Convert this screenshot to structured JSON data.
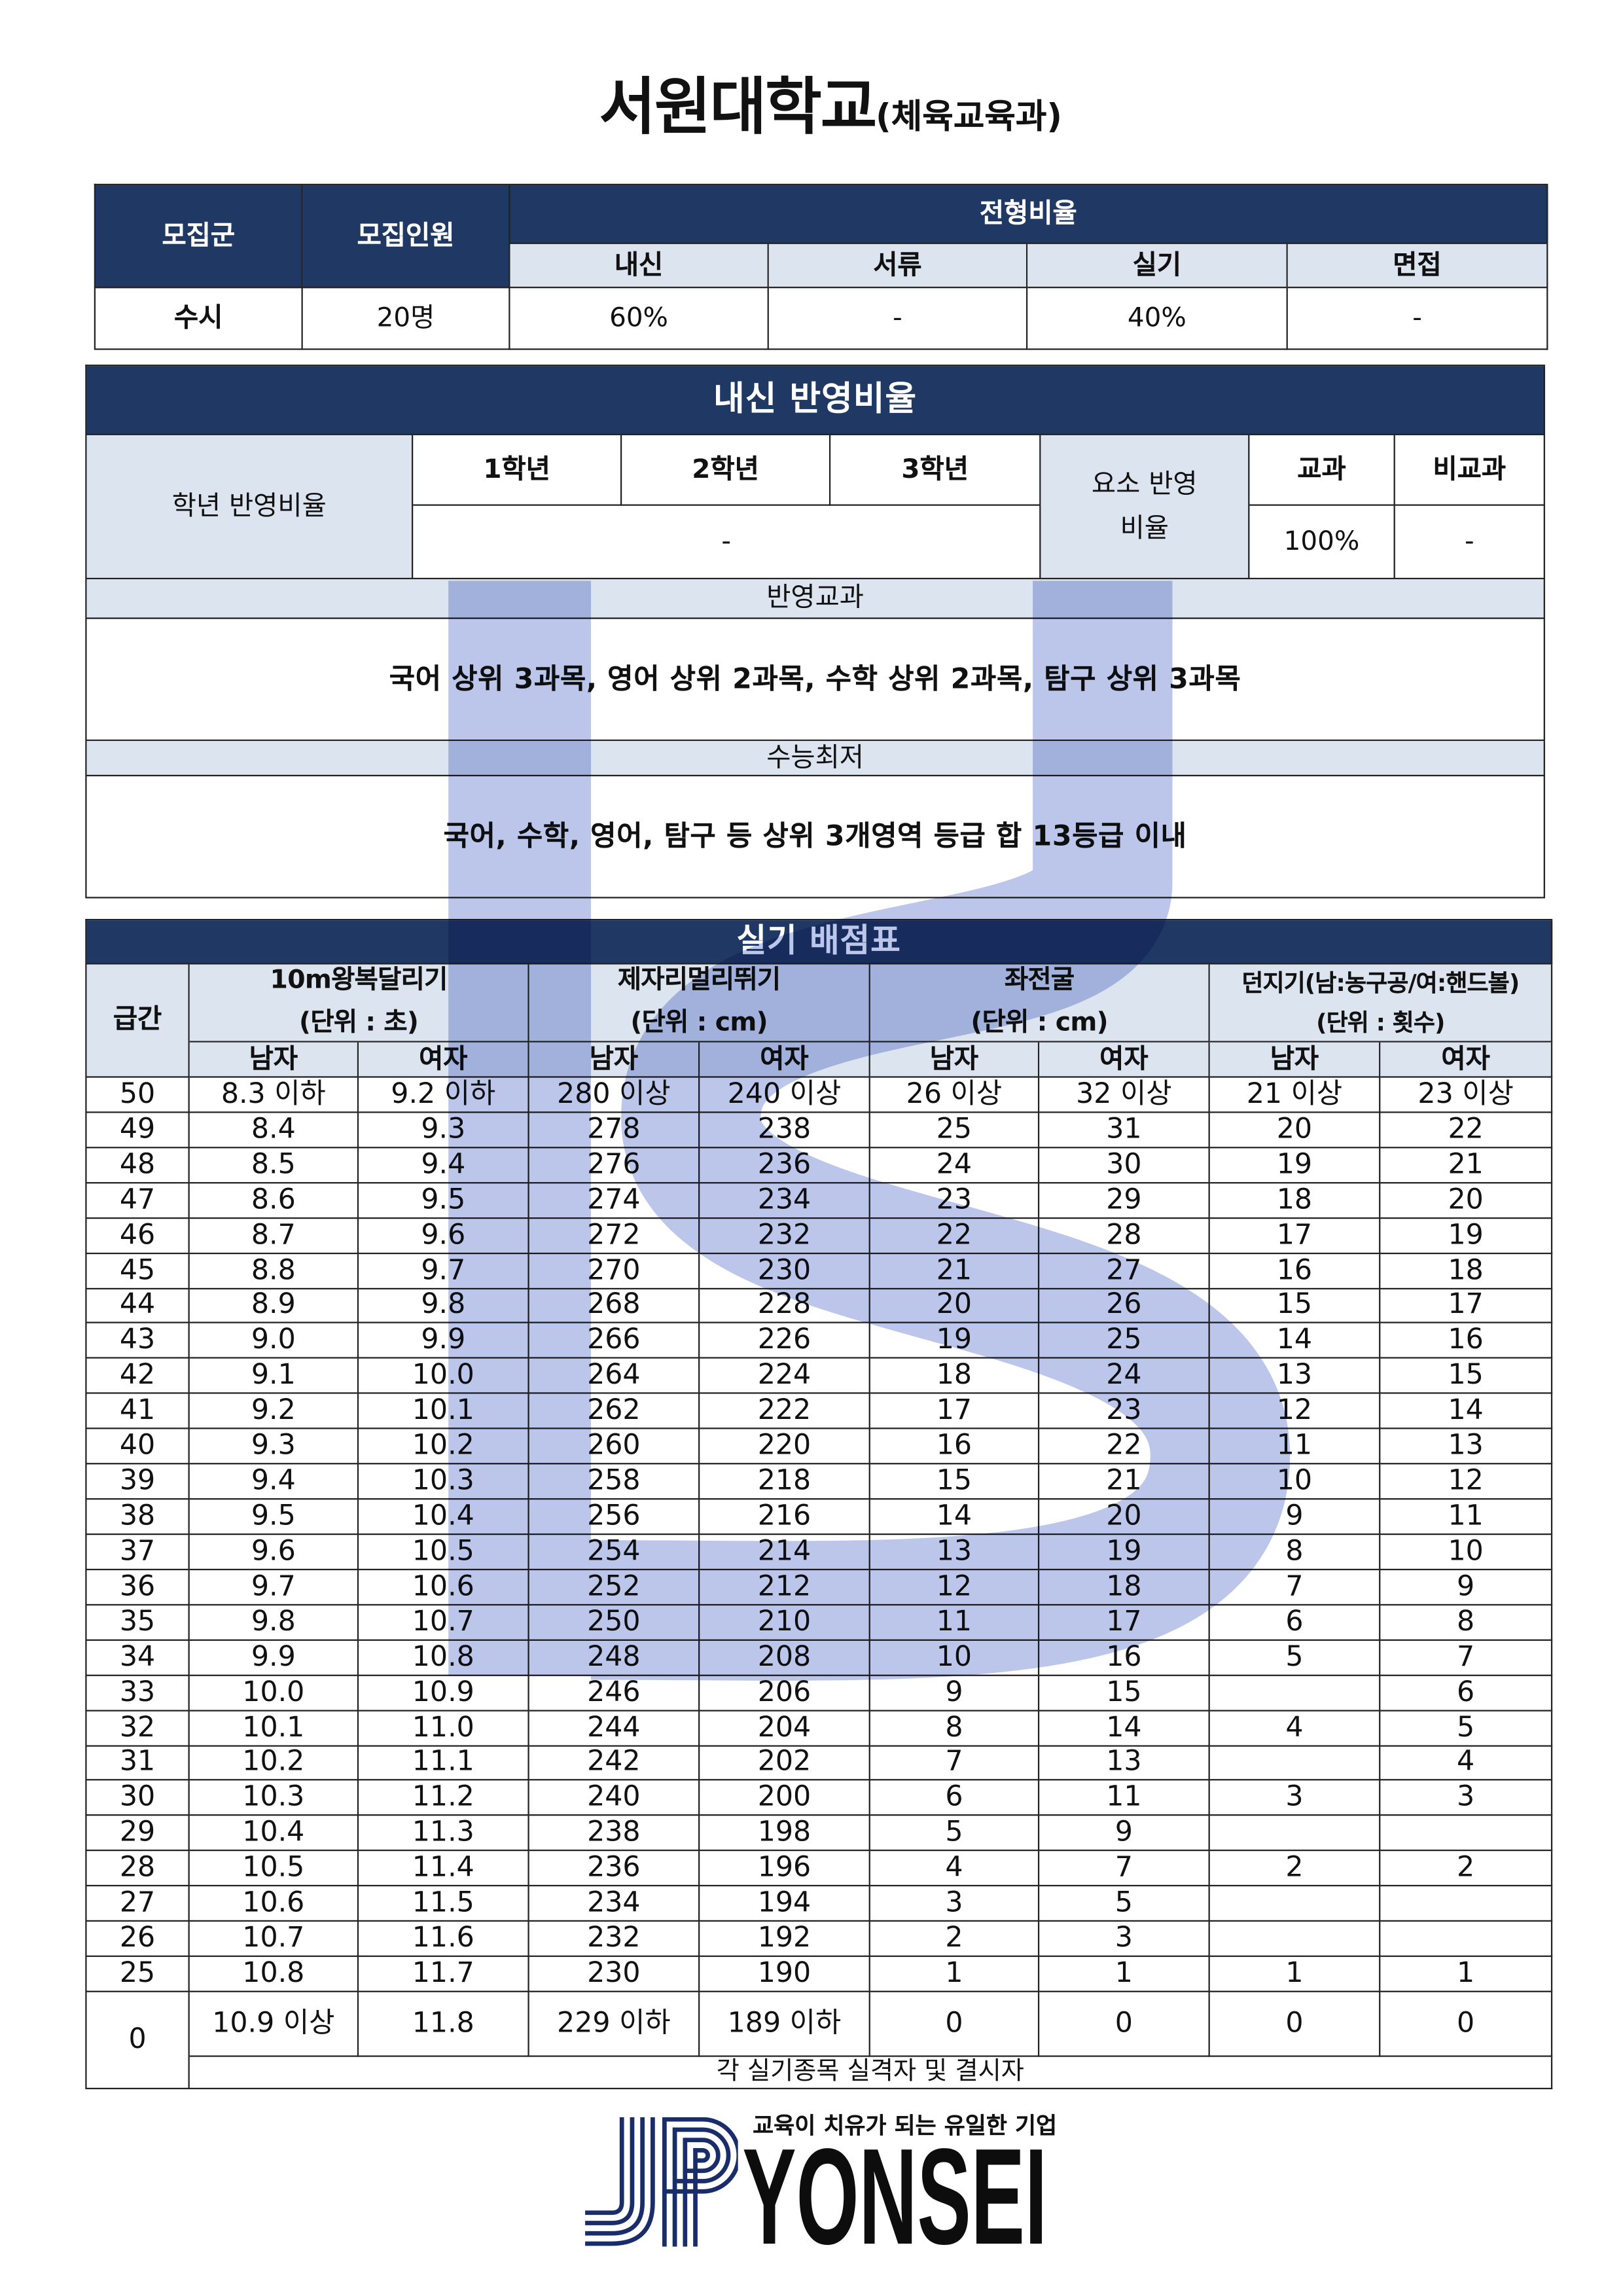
{
  "colors": {
    "navy": "#1f3864",
    "header_light": "#dce4ef",
    "watermark": "#bcc6ea"
  },
  "title": {
    "main": "서원대학교",
    "sub": "(체육교육과)"
  },
  "admission": {
    "headers": {
      "group": "모집군",
      "quota": "모집인원",
      "ratio": "전형비율",
      "cols": [
        "내신",
        "서류",
        "실기",
        "면접"
      ]
    },
    "row": {
      "group": "수시",
      "quota": "20명",
      "values": [
        "60%",
        "-",
        "40%",
        "-"
      ]
    }
  },
  "naesin": {
    "title": "내신 반영비율",
    "grade_label": "학년 반영비율",
    "grades": [
      "1학년",
      "2학년",
      "3학년"
    ],
    "grade_value": "-",
    "element_label": "요소 반영비율",
    "elements": [
      "교과",
      "비교과"
    ],
    "element_values": [
      "100%",
      "-"
    ],
    "subjects_label": "반영교과",
    "subjects": "국어 상위 3과목, 영어 상위 2과목, 수학 상위 2과목, 탐구 상위 3과목",
    "csat_label": "수능최저",
    "csat": "국어, 수학, 영어, 탐구 등 상위 3개영역 등급 합 13등급 이내"
  },
  "practical": {
    "title": "실기 배점표",
    "grade_header": "급간",
    "events": [
      {
        "name": "10m왕복달리기",
        "unit": "(단위 : 초)"
      },
      {
        "name": "제자리멀리뛰기",
        "unit": "(단위 : cm)"
      },
      {
        "name": "좌전굴",
        "unit": "(단위 : cm)"
      },
      {
        "name": "던지기(남:농구공/여:핸드볼)",
        "unit": "(단위 : 횟수)"
      }
    ],
    "gender": [
      "남자",
      "여자"
    ],
    "rows": [
      {
        "grade": "50",
        "values": [
          "8.3 이하",
          "9.2 이하",
          "280 이상",
          "240 이상",
          "26 이상",
          "32 이상",
          "21 이상",
          "23 이상"
        ]
      },
      {
        "grade": "49",
        "values": [
          "8.4",
          "9.3",
          "278",
          "238",
          "25",
          "31",
          "20",
          "22"
        ]
      },
      {
        "grade": "48",
        "values": [
          "8.5",
          "9.4",
          "276",
          "236",
          "24",
          "30",
          "19",
          "21"
        ]
      },
      {
        "grade": "47",
        "values": [
          "8.6",
          "9.5",
          "274",
          "234",
          "23",
          "29",
          "18",
          "20"
        ]
      },
      {
        "grade": "46",
        "values": [
          "8.7",
          "9.6",
          "272",
          "232",
          "22",
          "28",
          "17",
          "19"
        ]
      },
      {
        "grade": "45",
        "values": [
          "8.8",
          "9.7",
          "270",
          "230",
          "21",
          "27",
          "16",
          "18"
        ]
      },
      {
        "grade": "44",
        "values": [
          "8.9",
          "9.8",
          "268",
          "228",
          "20",
          "26",
          "15",
          "17"
        ]
      },
      {
        "grade": "43",
        "values": [
          "9.0",
          "9.9",
          "266",
          "226",
          "19",
          "25",
          "14",
          "16"
        ]
      },
      {
        "grade": "42",
        "values": [
          "9.1",
          "10.0",
          "264",
          "224",
          "18",
          "24",
          "13",
          "15"
        ]
      },
      {
        "grade": "41",
        "values": [
          "9.2",
          "10.1",
          "262",
          "222",
          "17",
          "23",
          "12",
          "14"
        ]
      },
      {
        "grade": "40",
        "values": [
          "9.3",
          "10.2",
          "260",
          "220",
          "16",
          "22",
          "11",
          "13"
        ]
      },
      {
        "grade": "39",
        "values": [
          "9.4",
          "10.3",
          "258",
          "218",
          "15",
          "21",
          "10",
          "12"
        ]
      },
      {
        "grade": "38",
        "values": [
          "9.5",
          "10.4",
          "256",
          "216",
          "14",
          "20",
          "9",
          "11"
        ]
      },
      {
        "grade": "37",
        "values": [
          "9.6",
          "10.5",
          "254",
          "214",
          "13",
          "19",
          "8",
          "10"
        ]
      },
      {
        "grade": "36",
        "values": [
          "9.7",
          "10.6",
          "252",
          "212",
          "12",
          "18",
          "7",
          "9"
        ]
      },
      {
        "grade": "35",
        "values": [
          "9.8",
          "10.7",
          "250",
          "210",
          "11",
          "17",
          "6",
          "8"
        ]
      },
      {
        "grade": "34",
        "values": [
          "9.9",
          "10.8",
          "248",
          "208",
          "10",
          "16",
          "5",
          "7"
        ]
      },
      {
        "grade": "33",
        "values": [
          "10.0",
          "10.9",
          "246",
          "206",
          "9",
          "15",
          "",
          "6"
        ]
      },
      {
        "grade": "32",
        "values": [
          "10.1",
          "11.0",
          "244",
          "204",
          "8",
          "14",
          "4",
          "5"
        ]
      },
      {
        "grade": "31",
        "values": [
          "10.2",
          "11.1",
          "242",
          "202",
          "7",
          "13",
          "",
          "4"
        ]
      },
      {
        "grade": "30",
        "values": [
          "10.3",
          "11.2",
          "240",
          "200",
          "6",
          "11",
          "3",
          "3"
        ]
      },
      {
        "grade": "29",
        "values": [
          "10.4",
          "11.3",
          "238",
          "198",
          "5",
          "9",
          "",
          ""
        ]
      },
      {
        "grade": "28",
        "values": [
          "10.5",
          "11.4",
          "236",
          "196",
          "4",
          "7",
          "2",
          "2"
        ]
      },
      {
        "grade": "27",
        "values": [
          "10.6",
          "11.5",
          "234",
          "194",
          "3",
          "5",
          "",
          ""
        ]
      },
      {
        "grade": "26",
        "values": [
          "10.7",
          "11.6",
          "232",
          "192",
          "2",
          "3",
          "",
          ""
        ]
      },
      {
        "grade": "25",
        "values": [
          "10.8",
          "11.7",
          "230",
          "190",
          "1",
          "1",
          "1",
          "1"
        ]
      }
    ],
    "zero": {
      "grade": "0",
      "values": [
        "10.9 이상",
        "11.8",
        "229 이하",
        "189 이하",
        "0",
        "0",
        "0",
        "0"
      ],
      "note": "각 실기종목 실격자 및 결시자"
    }
  },
  "footer": {
    "tagline": "교육이 치유가 되는 유일한 기업",
    "logo_mark": "JP",
    "wordmark": "YONSEI"
  }
}
